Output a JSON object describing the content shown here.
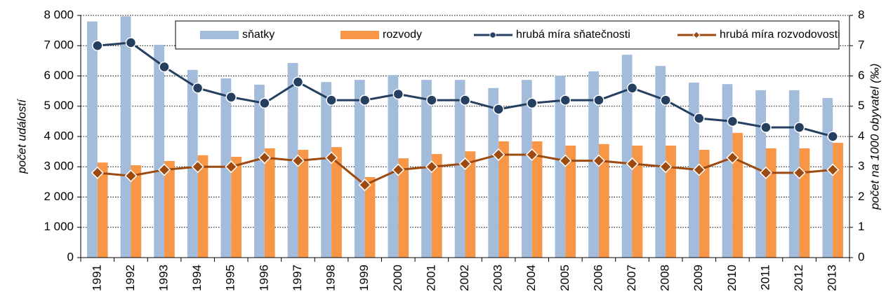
{
  "chart_data": {
    "type": "bar",
    "categories": [
      "1991",
      "1992",
      "1993",
      "1994",
      "1995",
      "1996",
      "1997",
      "1998",
      "1999",
      "2000",
      "2001",
      "2002",
      "2003",
      "2004",
      "2005",
      "2006",
      "2007",
      "2008",
      "2009",
      "2010",
      "2011",
      "2012",
      "2013"
    ],
    "series": [
      {
        "name": "sňatky",
        "type": "bar",
        "color": "#a3bcdc",
        "values": [
          7800,
          7970,
          7030,
          6200,
          5920,
          5710,
          6430,
          5800,
          5870,
          6030,
          5870,
          5870,
          5600,
          5870,
          6010,
          6150,
          6700,
          6330,
          5780,
          5730,
          5530,
          5530,
          5270
        ]
      },
      {
        "name": "rozvody",
        "type": "bar",
        "color": "#f79646",
        "values": [
          3140,
          3050,
          3190,
          3380,
          3330,
          3610,
          3560,
          3650,
          2660,
          3280,
          3420,
          3510,
          3840,
          3840,
          3700,
          3750,
          3700,
          3700,
          3560,
          4120,
          3610,
          3610,
          3790
        ]
      },
      {
        "name": "hrubá míra sňatečnosti",
        "type": "line",
        "marker": "circle",
        "axis": "y2",
        "color": "#243f60",
        "values": [
          7.0,
          7.1,
          6.3,
          5.6,
          5.3,
          5.1,
          5.8,
          5.2,
          5.2,
          5.4,
          5.2,
          5.2,
          4.9,
          5.1,
          5.2,
          5.2,
          5.6,
          5.2,
          4.6,
          4.5,
          4.3,
          4.3,
          4.0
        ]
      },
      {
        "name": "hrubá míra rozvodovosti",
        "type": "line",
        "marker": "diamond",
        "axis": "y2",
        "color": "#9c4a10",
        "values": [
          2.8,
          2.7,
          2.9,
          3.0,
          3.0,
          3.3,
          3.2,
          3.3,
          2.4,
          2.9,
          3.0,
          3.1,
          3.4,
          3.4,
          3.2,
          3.2,
          3.1,
          3.0,
          2.9,
          3.3,
          2.8,
          2.8,
          2.9
        ]
      }
    ],
    "ylabel": "počet událostí",
    "y2label": "počet na 1000 obyvatel (‰)",
    "ylim": [
      0,
      8000
    ],
    "yticks": [
      0,
      {
        "value": 1000,
        "label": "1 000"
      },
      {
        "value": 2000,
        "label": "2 000"
      },
      {
        "value": 3000,
        "label": "3 000"
      },
      {
        "value": 4000,
        "label": "4 000"
      },
      {
        "value": 5000,
        "label": "5 000"
      },
      {
        "value": 6000,
        "label": "6 000"
      },
      {
        "value": 7000,
        "label": "7 000"
      },
      {
        "value": 8000,
        "label": "8 000"
      }
    ],
    "y2lim": [
      0,
      8
    ],
    "y2ticks": [
      0,
      1,
      2,
      3,
      4,
      5,
      6,
      7,
      8
    ],
    "grid": true,
    "legend": "top"
  }
}
